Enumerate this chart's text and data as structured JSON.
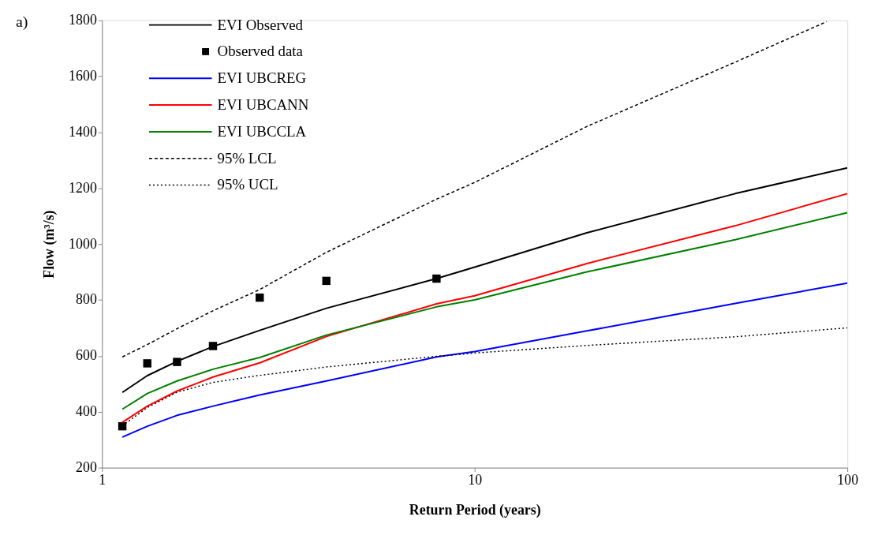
{
  "chart_data": {
    "type": "line",
    "xlabel": "Return Period (years)",
    "ylabel": "Flow (m³/s)",
    "annotations": [
      "a)"
    ],
    "x": [
      1.134,
      1.323,
      1.59,
      1.985,
      2.65,
      4,
      7.9,
      10,
      20,
      50,
      100
    ],
    "series": [
      {
        "name": "EVI Observed",
        "color": "#000000",
        "values": [
          469,
          529,
          580,
          633,
          691,
          770,
          876,
          917,
          1040,
          1180,
          1272
        ]
      },
      {
        "name": "Observed data",
        "type": "scatter",
        "marker": "square",
        "color": "#000000",
        "x": [
          1.134,
          1.323,
          1.59,
          1.985,
          2.65,
          4,
          7.9
        ],
        "values": [
          348,
          573,
          578,
          635,
          808,
          868,
          876
        ]
      },
      {
        "name": "EVI UBCREG",
        "color": "#0000ff",
        "values": [
          309,
          348,
          387,
          420,
          460,
          510,
          596,
          615,
          689,
          787,
          860
        ]
      },
      {
        "name": "EVI UBCANN",
        "color": "#ff0000",
        "values": [
          362,
          420,
          474,
          524,
          575,
          669,
          786,
          815,
          930,
          1065,
          1180
        ]
      },
      {
        "name": "EVI UBCCLA",
        "color": "#008000",
        "values": [
          409,
          465,
          510,
          552,
          594,
          674,
          775,
          800,
          900,
          1015,
          1112
        ]
      },
      {
        "name": "95% LCL",
        "color": "#000000",
        "line_style": "dashed",
        "x": [
          1.134,
          1.323,
          1.59,
          1.985,
          2.65,
          4,
          7.9,
          10,
          20,
          50,
          88
        ],
        "values": [
          596,
          640,
          697,
          761,
          837,
          970,
          1160,
          1220,
          1420,
          1650,
          1795
        ]
      },
      {
        "name": "95% UCL",
        "color": "#000000",
        "line_style": "dotted",
        "values": [
          350,
          415,
          470,
          505,
          530,
          560,
          598,
          610,
          637,
          668,
          700
        ]
      }
    ],
    "log": "x",
    "xlim": [
      1,
      100
    ],
    "xticks": [
      1,
      10,
      100
    ],
    "ylim": [
      200,
      1800
    ],
    "yticks": [
      200,
      400,
      600,
      800,
      1000,
      1200,
      1400,
      1600,
      1800
    ],
    "grid": false,
    "legend": "top left",
    "marker": "none",
    "line_style": "solid"
  }
}
